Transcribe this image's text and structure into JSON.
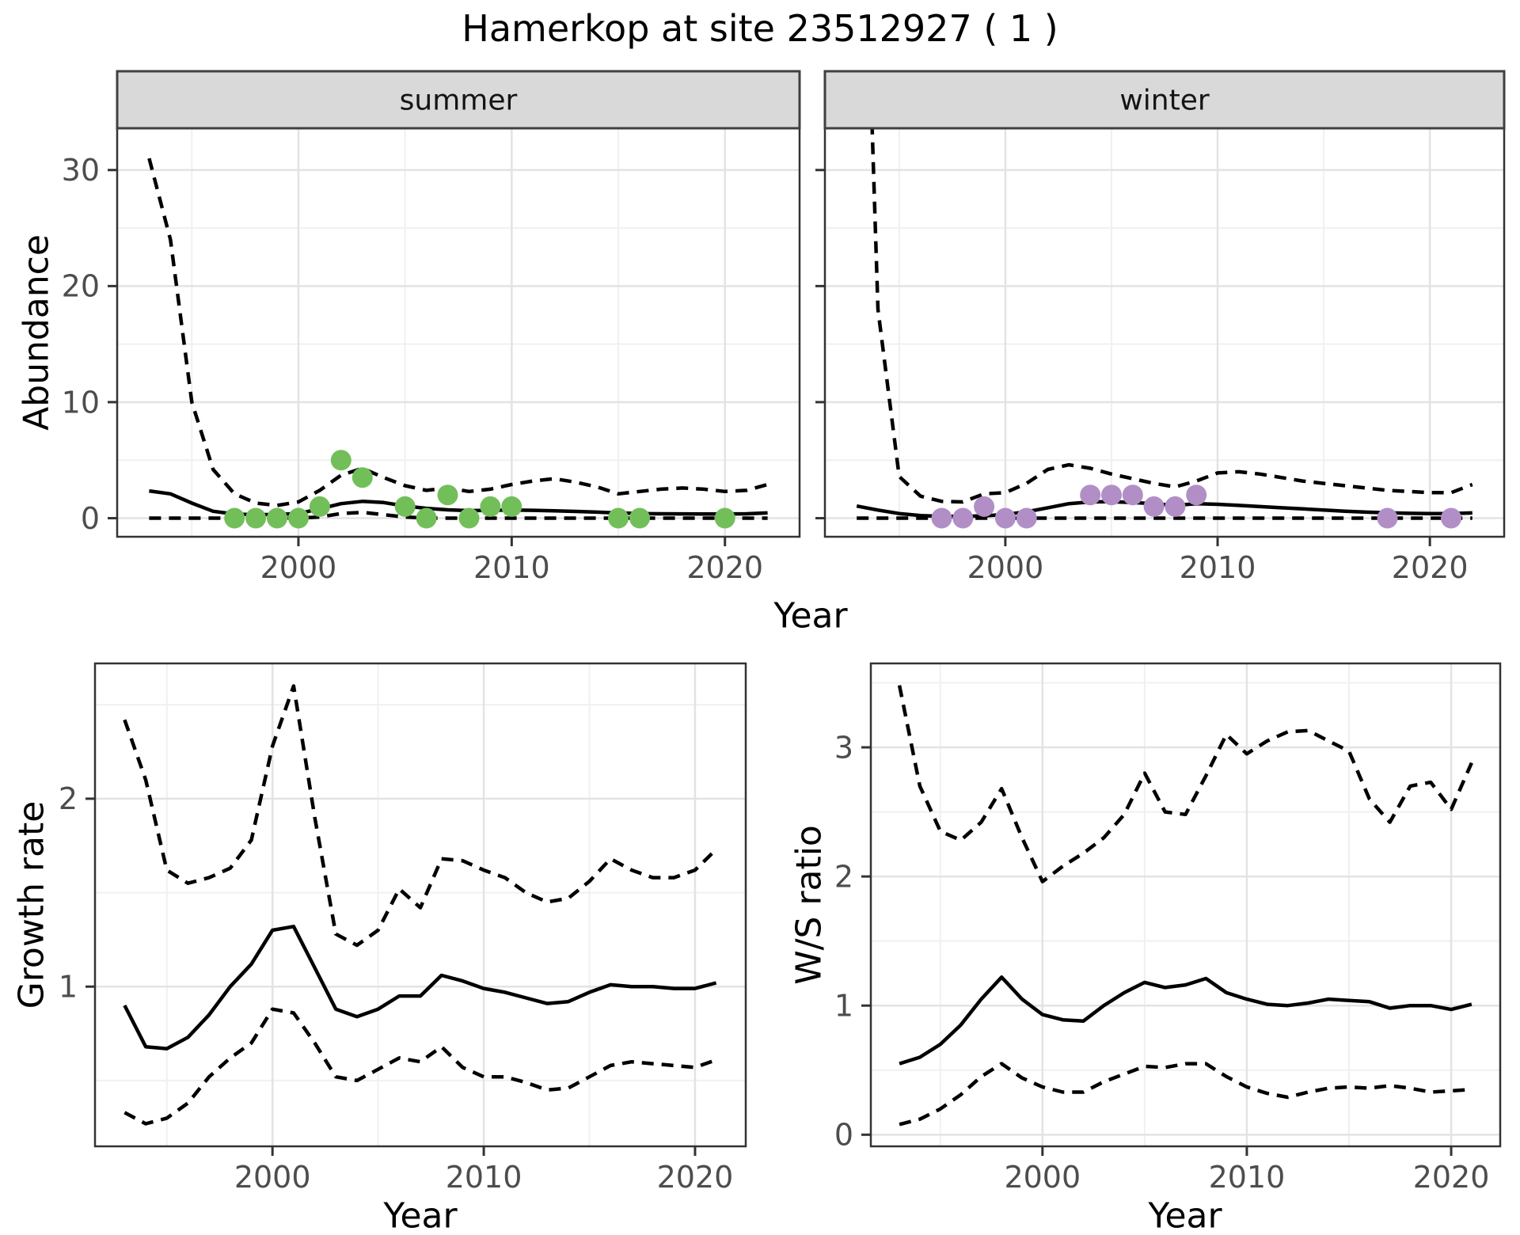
{
  "title": "Hamerkop at site 23512927 ( 1 )",
  "axis_labels": {
    "abundance": "Abundance",
    "year_top": "Year",
    "growth_rate": "Growth rate",
    "year_growth": "Year",
    "ws_ratio": "W/S ratio",
    "year_ws": "Year"
  },
  "colors": {
    "summer_point": "#72bf5a",
    "winter_point": "#b18fc6",
    "fit_line": "#000000",
    "ci_line": "#000000",
    "grid_major": "#e3e3e3",
    "grid_minor": "#f0f0f0",
    "panel_border": "#333333",
    "strip_bg": "#d9d9d9",
    "strip_border": "#404040",
    "tick_text": "#4d4d4d",
    "tick_mark": "#333333"
  },
  "chart_data": [
    {
      "id": "abundance-summer",
      "type": "line",
      "facet_label": "summer",
      "ylabel": "Abundance",
      "xlabel": "Year",
      "xlim": [
        1991.5,
        2023.5
      ],
      "ylim": [
        -1.6,
        33.6
      ],
      "xticks": [
        2000,
        2010,
        2020
      ],
      "xticks_minor": [
        1995,
        2005,
        2015
      ],
      "yticks": [
        0,
        10,
        20,
        30
      ],
      "yticks_minor": [
        5,
        15,
        25
      ],
      "years": [
        1993,
        1994,
        1995,
        1996,
        1997,
        1998,
        1999,
        2000,
        2001,
        2002,
        2003,
        2004,
        2005,
        2006,
        2007,
        2008,
        2009,
        2010,
        2011,
        2012,
        2013,
        2014,
        2015,
        2016,
        2017,
        2018,
        2019,
        2020,
        2021,
        2022
      ],
      "series": [
        {
          "name": "upper_95ci",
          "style": "dashed",
          "values": [
            31,
            24,
            10,
            4.2,
            2.1,
            1.3,
            1.1,
            1.4,
            2.4,
            3.7,
            4.3,
            3.5,
            2.8,
            2.4,
            2.6,
            2.3,
            2.5,
            2.9,
            3.2,
            3.4,
            3.1,
            2.7,
            2.1,
            2.3,
            2.5,
            2.6,
            2.5,
            2.3,
            2.4,
            2.9
          ]
        },
        {
          "name": "estimate",
          "style": "solid",
          "values": [
            2.35,
            2.1,
            1.3,
            0.6,
            0.35,
            0.3,
            0.32,
            0.4,
            0.8,
            1.25,
            1.45,
            1.35,
            1.05,
            0.85,
            0.72,
            0.65,
            0.68,
            0.7,
            0.68,
            0.63,
            0.58,
            0.52,
            0.45,
            0.4,
            0.38,
            0.37,
            0.36,
            0.36,
            0.38,
            0.45
          ]
        },
        {
          "name": "lower_95ci",
          "style": "dashed",
          "values": [
            0,
            0,
            0,
            0,
            0,
            0,
            0,
            0,
            0.1,
            0.4,
            0.5,
            0.3,
            0.1,
            0,
            0,
            0,
            0,
            0,
            0,
            0,
            0,
            0,
            0,
            0,
            0,
            0,
            0,
            0,
            0,
            0
          ]
        }
      ],
      "points": {
        "name": "observed-counts",
        "color": "#72bf5a",
        "data": [
          [
            1997,
            0
          ],
          [
            1998,
            0
          ],
          [
            1999,
            0
          ],
          [
            2000,
            0
          ],
          [
            2001,
            1
          ],
          [
            2002,
            5
          ],
          [
            2003,
            3.5
          ],
          [
            2005,
            1
          ],
          [
            2006,
            0
          ],
          [
            2007,
            2
          ],
          [
            2008,
            0
          ],
          [
            2009,
            1
          ],
          [
            2010,
            1
          ],
          [
            2015,
            0
          ],
          [
            2016,
            0
          ],
          [
            2020,
            0
          ]
        ]
      }
    },
    {
      "id": "abundance-winter",
      "type": "line",
      "facet_label": "winter",
      "ylabel": "Abundance",
      "xlabel": "Year",
      "xlim": [
        1991.5,
        2023.5
      ],
      "ylim": [
        -1.6,
        33.6
      ],
      "xticks": [
        2000,
        2010,
        2020
      ],
      "xticks_minor": [
        1995,
        2005,
        2015
      ],
      "yticks": [
        0,
        10,
        20,
        30
      ],
      "yticks_minor": [
        5,
        15,
        25
      ],
      "years": [
        1993,
        1994,
        1995,
        1996,
        1997,
        1998,
        1999,
        2000,
        2001,
        2002,
        2003,
        2004,
        2005,
        2006,
        2007,
        2008,
        2009,
        2010,
        2011,
        2012,
        2013,
        2014,
        2015,
        2016,
        2017,
        2018,
        2019,
        2020,
        2021,
        2022
      ],
      "series": [
        {
          "name": "upper_95ci",
          "style": "dashed",
          "values": [
            75,
            18,
            3.6,
            1.9,
            1.45,
            1.4,
            2.1,
            2.2,
            3.0,
            4.2,
            4.6,
            4.3,
            3.8,
            3.4,
            3.0,
            2.7,
            3.2,
            3.9,
            4.0,
            3.8,
            3.5,
            3.2,
            3.0,
            2.8,
            2.6,
            2.4,
            2.3,
            2.2,
            2.2,
            2.9
          ]
        },
        {
          "name": "estimate",
          "style": "solid",
          "values": [
            1.05,
            0.7,
            0.4,
            0.22,
            0.15,
            0.15,
            0.2,
            0.32,
            0.55,
            0.9,
            1.25,
            1.4,
            1.42,
            1.35,
            1.25,
            1.1,
            1.25,
            1.2,
            1.1,
            1.0,
            0.9,
            0.8,
            0.7,
            0.6,
            0.52,
            0.46,
            0.42,
            0.4,
            0.4,
            0.45
          ]
        },
        {
          "name": "lower_95ci",
          "style": "dashed",
          "values": [
            0,
            0,
            0,
            0,
            0,
            0,
            0,
            0,
            0,
            0,
            0,
            0,
            0,
            0,
            0,
            0,
            0,
            0,
            0,
            0,
            0,
            0,
            0,
            0,
            0,
            0,
            0,
            0,
            0,
            0
          ]
        }
      ],
      "points": {
        "name": "observed-counts",
        "color": "#b18fc6",
        "data": [
          [
            1997,
            0
          ],
          [
            1998,
            0
          ],
          [
            1999,
            1
          ],
          [
            2000,
            0
          ],
          [
            2001,
            0
          ],
          [
            2004,
            2
          ],
          [
            2005,
            2
          ],
          [
            2006,
            2
          ],
          [
            2007,
            1
          ],
          [
            2008,
            1
          ],
          [
            2009,
            2
          ],
          [
            2018,
            0
          ],
          [
            2021,
            0
          ]
        ]
      }
    },
    {
      "id": "growth-rate",
      "type": "line",
      "facet_label": "",
      "ylabel": "Growth rate",
      "xlabel": "Year",
      "xlim": [
        1991.6,
        2022.4
      ],
      "ylim": [
        0.15,
        2.72
      ],
      "xticks": [
        2000,
        2010,
        2020
      ],
      "xticks_minor": [
        1995,
        2005,
        2015
      ],
      "yticks": [
        1,
        2
      ],
      "yticks_minor": [
        0.5,
        1.5,
        2.5
      ],
      "years": [
        1993,
        1994,
        1995,
        1996,
        1997,
        1998,
        1999,
        2000,
        2001,
        2002,
        2003,
        2004,
        2005,
        2006,
        2007,
        2008,
        2009,
        2010,
        2011,
        2012,
        2013,
        2014,
        2015,
        2016,
        2017,
        2018,
        2019,
        2020,
        2021
      ],
      "series": [
        {
          "name": "upper_95ci",
          "style": "dashed",
          "values": [
            2.42,
            2.1,
            1.62,
            1.55,
            1.58,
            1.63,
            1.78,
            2.28,
            2.6,
            1.9,
            1.28,
            1.22,
            1.3,
            1.52,
            1.42,
            1.68,
            1.67,
            1.62,
            1.58,
            1.5,
            1.45,
            1.47,
            1.56,
            1.68,
            1.62,
            1.58,
            1.58,
            1.62,
            1.73
          ]
        },
        {
          "name": "estimate",
          "style": "solid",
          "values": [
            0.9,
            0.68,
            0.67,
            0.73,
            0.85,
            1.0,
            1.12,
            1.3,
            1.32,
            1.1,
            0.88,
            0.84,
            0.88,
            0.95,
            0.95,
            1.06,
            1.03,
            0.99,
            0.97,
            0.94,
            0.91,
            0.92,
            0.97,
            1.01,
            1.0,
            1.0,
            0.99,
            0.99,
            1.02
          ]
        },
        {
          "name": "lower_95ci",
          "style": "dashed",
          "values": [
            0.33,
            0.27,
            0.3,
            0.38,
            0.52,
            0.62,
            0.7,
            0.88,
            0.86,
            0.7,
            0.52,
            0.5,
            0.56,
            0.62,
            0.6,
            0.68,
            0.57,
            0.52,
            0.52,
            0.49,
            0.45,
            0.46,
            0.52,
            0.58,
            0.6,
            0.59,
            0.58,
            0.57,
            0.61
          ]
        }
      ],
      "points": null
    },
    {
      "id": "ws-ratio",
      "type": "line",
      "facet_label": "",
      "ylabel": "W/S ratio",
      "xlabel": "Year",
      "xlim": [
        1991.6,
        2022.4
      ],
      "ylim": [
        -0.09,
        3.65
      ],
      "xticks": [
        2000,
        2010,
        2020
      ],
      "xticks_minor": [
        1995,
        2005,
        2015
      ],
      "yticks": [
        0,
        1,
        2,
        3
      ],
      "yticks_minor": [
        0.5,
        1.5,
        2.5,
        3.5
      ],
      "years": [
        1993,
        1994,
        1995,
        1996,
        1997,
        1998,
        1999,
        2000,
        2001,
        2002,
        2003,
        2004,
        2005,
        2006,
        2007,
        2008,
        2009,
        2010,
        2011,
        2012,
        2013,
        2014,
        2015,
        2016,
        2017,
        2018,
        2019,
        2020,
        2021
      ],
      "series": [
        {
          "name": "upper_95ci",
          "style": "dashed",
          "values": [
            3.48,
            2.7,
            2.35,
            2.28,
            2.42,
            2.68,
            2.3,
            1.96,
            2.08,
            2.18,
            2.3,
            2.48,
            2.8,
            2.5,
            2.48,
            2.78,
            3.1,
            2.95,
            3.05,
            3.12,
            3.13,
            3.05,
            2.97,
            2.6,
            2.42,
            2.7,
            2.73,
            2.52,
            2.88
          ]
        },
        {
          "name": "estimate",
          "style": "solid",
          "values": [
            0.55,
            0.6,
            0.7,
            0.85,
            1.05,
            1.22,
            1.05,
            0.93,
            0.89,
            0.88,
            1.0,
            1.1,
            1.18,
            1.14,
            1.16,
            1.21,
            1.1,
            1.05,
            1.01,
            1.0,
            1.02,
            1.05,
            1.04,
            1.03,
            0.98,
            1.0,
            1.0,
            0.97,
            1.01
          ]
        },
        {
          "name": "lower_95ci",
          "style": "dashed",
          "values": [
            0.08,
            0.12,
            0.2,
            0.31,
            0.45,
            0.55,
            0.44,
            0.37,
            0.33,
            0.33,
            0.41,
            0.47,
            0.53,
            0.52,
            0.55,
            0.55,
            0.45,
            0.37,
            0.32,
            0.29,
            0.33,
            0.36,
            0.37,
            0.36,
            0.38,
            0.36,
            0.33,
            0.34,
            0.35
          ]
        }
      ],
      "points": null
    }
  ]
}
